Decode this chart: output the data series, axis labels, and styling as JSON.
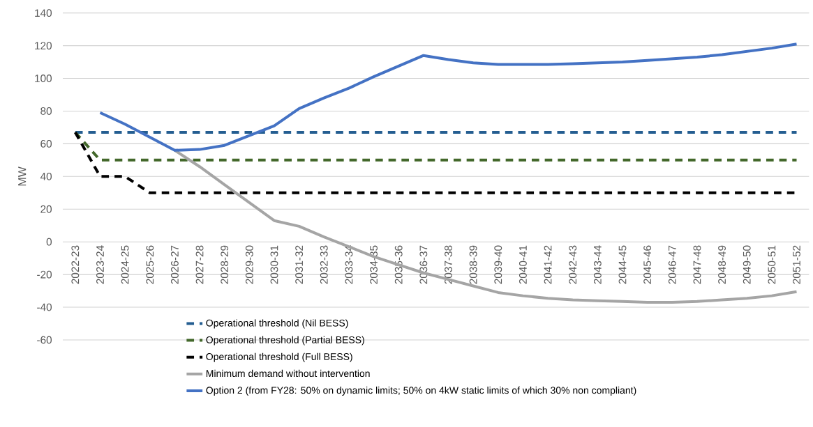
{
  "chart_data": {
    "type": "line",
    "ylabel": "MW",
    "categories": [
      "2022-23",
      "2023-24",
      "2024-25",
      "2025-26",
      "2026-27",
      "2027-28",
      "2028-29",
      "2029-30",
      "2030-31",
      "2031-32",
      "2032-33",
      "2033-34",
      "2034-35",
      "2035-36",
      "2036-37",
      "2037-38",
      "2038-39",
      "2039-40",
      "2040-41",
      "2041-42",
      "2042-43",
      "2043-44",
      "2044-45",
      "2045-46",
      "2046-47",
      "2047-48",
      "2048-49",
      "2049-50",
      "2050-51",
      "2051-52"
    ],
    "ylim": [
      -60,
      140
    ],
    "yticks": [
      -60,
      -40,
      -20,
      0,
      20,
      40,
      60,
      80,
      100,
      120,
      140
    ],
    "grid": "y",
    "legend": "bottom",
    "series": [
      {
        "name": "Operational threshold (Nil BESS)",
        "color": "#255e91",
        "line_style": "dashed",
        "values": [
          67,
          67,
          67,
          67,
          67,
          67,
          67,
          67,
          67,
          67,
          67,
          67,
          67,
          67,
          67,
          67,
          67,
          67,
          67,
          67,
          67,
          67,
          67,
          67,
          67,
          67,
          67,
          67,
          67,
          67
        ]
      },
      {
        "name": "Operational threshold (Partial BESS)",
        "color": "#43682b",
        "line_style": "dashed",
        "values": [
          67,
          50,
          50,
          50,
          50,
          50,
          50,
          50,
          50,
          50,
          50,
          50,
          50,
          50,
          50,
          50,
          50,
          50,
          50,
          50,
          50,
          50,
          50,
          50,
          50,
          50,
          50,
          50,
          50,
          50
        ]
      },
      {
        "name": "Operational threshold (Full BESS)",
        "color": "#000000",
        "line_style": "dashed",
        "values": [
          67,
          40,
          40,
          30,
          30,
          30,
          30,
          30,
          30,
          30,
          30,
          30,
          30,
          30,
          30,
          30,
          30,
          30,
          30,
          30,
          30,
          30,
          30,
          30,
          30,
          30,
          30,
          30,
          30,
          30
        ]
      },
      {
        "name": "Minimum demand without intervention",
        "color": "#a5a5a5",
        "line_style": "solid",
        "values": [
          null,
          null,
          null,
          null,
          56,
          46,
          35,
          24,
          13,
          9.5,
          3,
          -3,
          -9,
          -14,
          -19,
          -23,
          -27,
          -31,
          -33,
          -34.5,
          -35.5,
          -36,
          -36.5,
          -37,
          -37,
          -36.5,
          -35.5,
          -34.5,
          -33,
          -30.5
        ]
      },
      {
        "name": "Option 2  (from FY28: 50% on dynamic limits; 50% on 4kW static limits of which 30% non compliant)",
        "color": "#4472c4",
        "line_style": "solid",
        "values": [
          null,
          79,
          72,
          64,
          56,
          56.5,
          59,
          65,
          71,
          81.5,
          88,
          94,
          101,
          107.5,
          114,
          111.5,
          109.5,
          108.5,
          108.5,
          108.5,
          109,
          109.5,
          110,
          111,
          112,
          113,
          114.5,
          116.5,
          118.5,
          121
        ]
      }
    ]
  }
}
